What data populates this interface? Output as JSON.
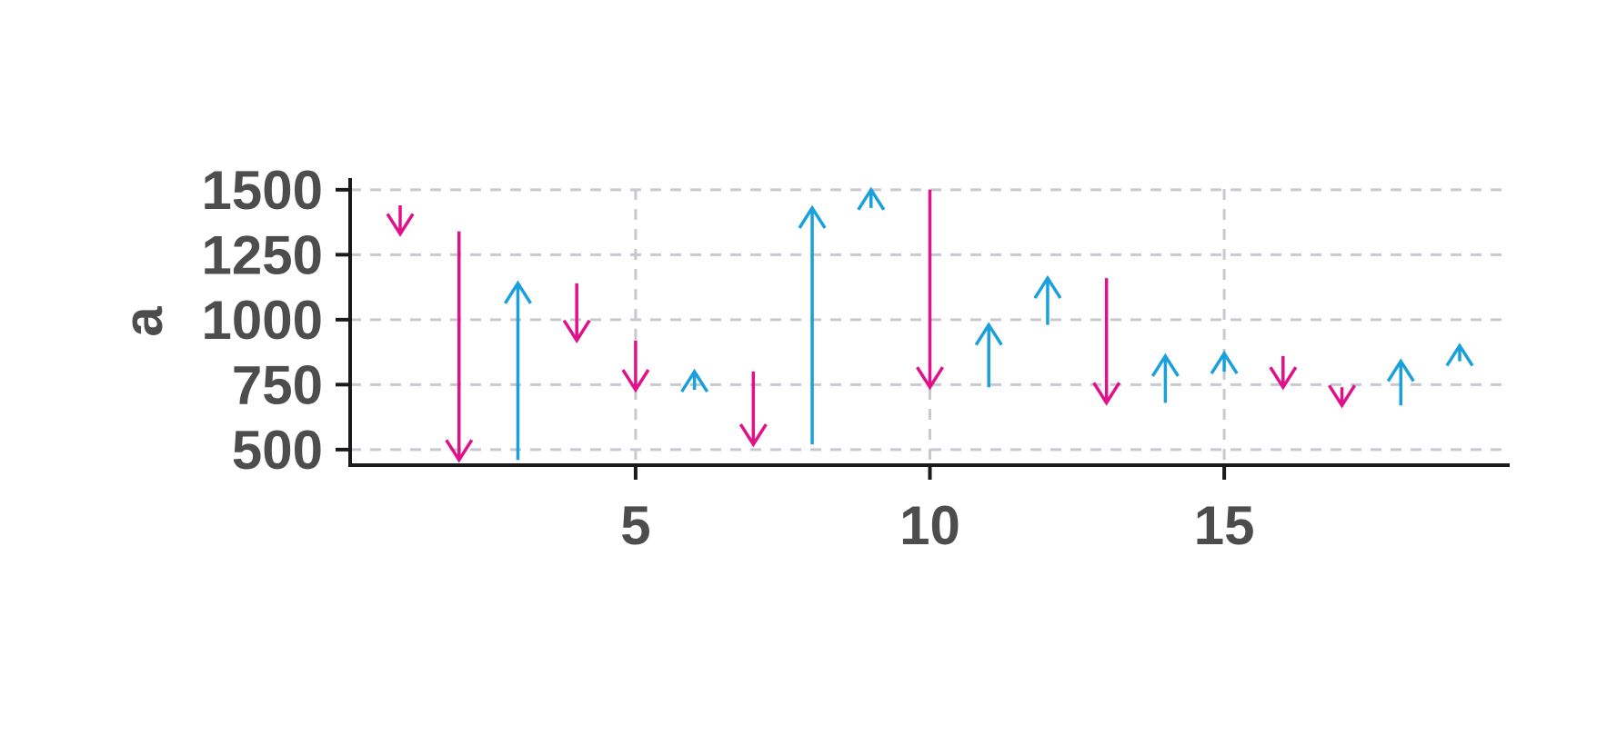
{
  "chart_data": {
    "type": "arrow",
    "title": "",
    "xlabel": "",
    "ylabel": "a",
    "xlim": [
      0.15,
      19.85
    ],
    "ylim": [
      440,
      1545
    ],
    "x_ticks": [
      5,
      10,
      15
    ],
    "y_ticks": [
      500,
      750,
      1000,
      1250,
      1500
    ],
    "grid": true,
    "colors": {
      "up": "#1aa0db",
      "down": "#e0118a",
      "axis": "#1a1a1a",
      "grid": "#c8c8d0",
      "text": "#4d4d4d"
    },
    "arrows": [
      {
        "x": 1,
        "from": 1440,
        "to": 1330
      },
      {
        "x": 2,
        "from": 1340,
        "to": 460
      },
      {
        "x": 3,
        "from": 460,
        "to": 1140
      },
      {
        "x": 4,
        "from": 1140,
        "to": 920
      },
      {
        "x": 5,
        "from": 920,
        "to": 730
      },
      {
        "x": 6,
        "from": 730,
        "to": 800
      },
      {
        "x": 7,
        "from": 800,
        "to": 520
      },
      {
        "x": 8,
        "from": 520,
        "to": 1430
      },
      {
        "x": 9,
        "from": 1430,
        "to": 1500
      },
      {
        "x": 10,
        "from": 1500,
        "to": 740
      },
      {
        "x": 11,
        "from": 740,
        "to": 980
      },
      {
        "x": 12,
        "from": 980,
        "to": 1160
      },
      {
        "x": 13,
        "from": 1160,
        "to": 680
      },
      {
        "x": 14,
        "from": 680,
        "to": 860
      },
      {
        "x": 15,
        "from": 800,
        "to": 870
      },
      {
        "x": 16,
        "from": 860,
        "to": 740
      },
      {
        "x": 17,
        "from": 740,
        "to": 670
      },
      {
        "x": 18,
        "from": 670,
        "to": 840
      },
      {
        "x": 19,
        "from": 840,
        "to": 900
      }
    ]
  }
}
